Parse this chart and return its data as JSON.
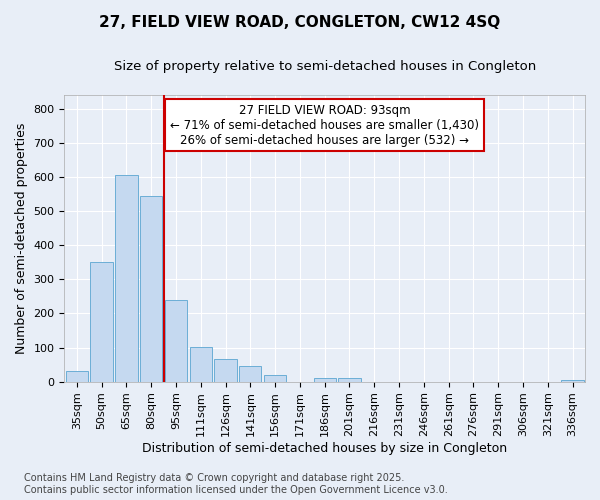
{
  "title_line1": "27, FIELD VIEW ROAD, CONGLETON, CW12 4SQ",
  "title_line2": "Size of property relative to semi-detached houses in Congleton",
  "xlabel": "Distribution of semi-detached houses by size in Congleton",
  "ylabel": "Number of semi-detached properties",
  "categories": [
    "35sqm",
    "50sqm",
    "65sqm",
    "80sqm",
    "95sqm",
    "111sqm",
    "126sqm",
    "141sqm",
    "156sqm",
    "171sqm",
    "186sqm",
    "201sqm",
    "216sqm",
    "231sqm",
    "246sqm",
    "261sqm",
    "276sqm",
    "291sqm",
    "306sqm",
    "321sqm",
    "336sqm"
  ],
  "values": [
    30,
    350,
    607,
    543,
    240,
    102,
    68,
    46,
    20,
    0,
    10,
    10,
    0,
    0,
    0,
    0,
    0,
    0,
    0,
    0,
    5
  ],
  "bar_color": "#c5d9f0",
  "bar_edge_color": "#6baed6",
  "vline_color": "#cc0000",
  "annotation_text_line1": "27 FIELD VIEW ROAD: 93sqm",
  "annotation_text_line2": "← 71% of semi-detached houses are smaller (1,430)",
  "annotation_text_line3": "26% of semi-detached houses are larger (532) →",
  "annotation_box_color": "#ffffff",
  "annotation_box_edge": "#cc0000",
  "ylim": [
    0,
    840
  ],
  "yticks": [
    0,
    100,
    200,
    300,
    400,
    500,
    600,
    700,
    800
  ],
  "background_color": "#e8eef7",
  "plot_background": "#e8eef7",
  "footer_line1": "Contains HM Land Registry data © Crown copyright and database right 2025.",
  "footer_line2": "Contains public sector information licensed under the Open Government Licence v3.0.",
  "title_fontsize": 11,
  "subtitle_fontsize": 9.5,
  "axis_label_fontsize": 9,
  "tick_fontsize": 8,
  "annotation_fontsize": 8.5,
  "footer_fontsize": 7
}
